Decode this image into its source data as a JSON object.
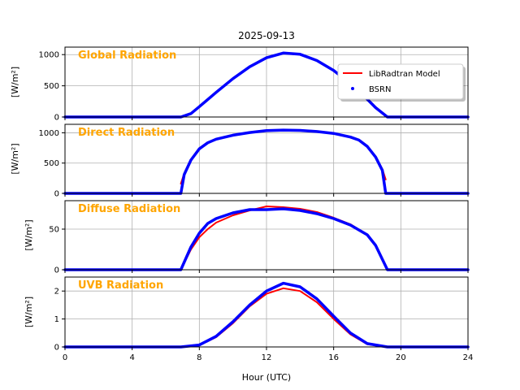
{
  "chart_data": {
    "type": "line",
    "title": "2025-09-13",
    "xlabel": "Hour (UTC)",
    "xlim": [
      0,
      24
    ],
    "xticks": [
      "0",
      "4",
      "8",
      "12",
      "16",
      "20",
      "24"
    ],
    "grid": true,
    "legend": {
      "placement": "top-right of first panel",
      "entries": [
        "LibRadtran Model",
        "BSRN"
      ]
    },
    "colors": {
      "model": "#ff0000",
      "bsrn": "#0000ff",
      "label": "#ffa500"
    },
    "panels": [
      {
        "label": "Global Radiation",
        "ylabel": "[W/m²]",
        "ylim": [
          0,
          1120
        ],
        "yticks": [
          "0",
          "500",
          "1000"
        ],
        "series": [
          {
            "name": "LibRadtran Model",
            "x": [
              6.9,
              7.5,
              8,
              9,
              10,
              11,
              12,
              13,
              14,
              15,
              16,
              17,
              18,
              18.5,
              19.2
            ],
            "values": [
              0,
              60,
              170,
              400,
              620,
              810,
              950,
              1020,
              1000,
              900,
              740,
              530,
              290,
              160,
              0
            ]
          },
          {
            "name": "BSRN",
            "x": [
              0,
              6.9,
              7.5,
              8,
              9,
              10,
              11,
              12,
              13,
              14,
              15,
              16,
              17,
              18,
              18.5,
              19.2,
              24
            ],
            "values": [
              0,
              0,
              55,
              165,
              395,
              615,
              805,
              950,
              1025,
              1005,
              905,
              745,
              530,
              285,
              150,
              0,
              0
            ]
          }
        ]
      },
      {
        "label": "Direct Radiation",
        "ylabel": "[W/m²]",
        "ylim": [
          0,
          1140
        ],
        "yticks": [
          "0",
          "500",
          "1000"
        ],
        "series": [
          {
            "name": "LibRadtran Model",
            "x": [
              6.9,
              7.1,
              7.5,
              8,
              8.5,
              9,
              10,
              11,
              12,
              13,
              14,
              15,
              16,
              17,
              17.5,
              18,
              18.5,
              18.9,
              19.1
            ],
            "values": [
              160,
              330,
              560,
              740,
              840,
              900,
              960,
              1000,
              1030,
              1040,
              1035,
              1020,
              990,
              930,
              880,
              780,
              610,
              400,
              230
            ]
          },
          {
            "name": "BSRN",
            "x": [
              0,
              6.9,
              7.1,
              7.5,
              8,
              8.5,
              9,
              10,
              11,
              12,
              13,
              14,
              15,
              16,
              17,
              17.5,
              18,
              18.5,
              18.9,
              19.1,
              24
            ],
            "values": [
              0,
              0,
              310,
              550,
              735,
              835,
              895,
              960,
              1005,
              1035,
              1045,
              1040,
              1020,
              990,
              930,
              880,
              775,
              600,
              380,
              0,
              0
            ]
          }
        ]
      },
      {
        "label": "Diffuse Radiation",
        "ylabel": "[W/m²]",
        "ylim": [
          0,
          85
        ],
        "yticks": [
          "0",
          "50"
        ],
        "series": [
          {
            "name": "LibRadtran Model",
            "x": [
              6.9,
              7.5,
              8,
              8.5,
              9,
              10,
              11,
              12,
              13,
              14,
              15,
              16,
              17,
              18,
              18.5,
              19.2
            ],
            "values": [
              0,
              25,
              40,
              50,
              58,
              67,
              73,
              78,
              77,
              75,
              71,
              64,
              56,
              43,
              30,
              0
            ]
          },
          {
            "name": "BSRN",
            "x": [
              0,
              6.9,
              7.5,
              8,
              8.5,
              9,
              10,
              11,
              12,
              13,
              14,
              15,
              16,
              17,
              18,
              18.5,
              19.2,
              24
            ],
            "values": [
              0,
              0,
              28,
              45,
              57,
              63,
              70,
              74,
              74,
              75,
              73,
              69,
              63,
              55,
              43,
              30,
              0,
              0
            ]
          }
        ]
      },
      {
        "label": "UVB Radiation",
        "ylabel": "[W/m²]",
        "ylim": [
          0,
          2.5
        ],
        "yticks": [
          "0",
          "1",
          "2"
        ],
        "series": [
          {
            "name": "LibRadtran Model",
            "x": [
              6.9,
              8,
              9,
              10,
              11,
              12,
              13,
              14,
              15,
              16,
              17,
              18,
              19.2
            ],
            "values": [
              0,
              0.06,
              0.35,
              0.85,
              1.45,
              1.9,
              2.1,
              2.0,
              1.6,
              1.0,
              0.45,
              0.1,
              0
            ]
          },
          {
            "name": "BSRN",
            "x": [
              0,
              6.9,
              8,
              9,
              10,
              11,
              12,
              13,
              14,
              15,
              16,
              17,
              18,
              19.2,
              24
            ],
            "values": [
              0,
              0,
              0.07,
              0.38,
              0.9,
              1.5,
              2.0,
              2.28,
              2.15,
              1.72,
              1.1,
              0.5,
              0.12,
              0,
              0
            ]
          }
        ]
      }
    ]
  }
}
